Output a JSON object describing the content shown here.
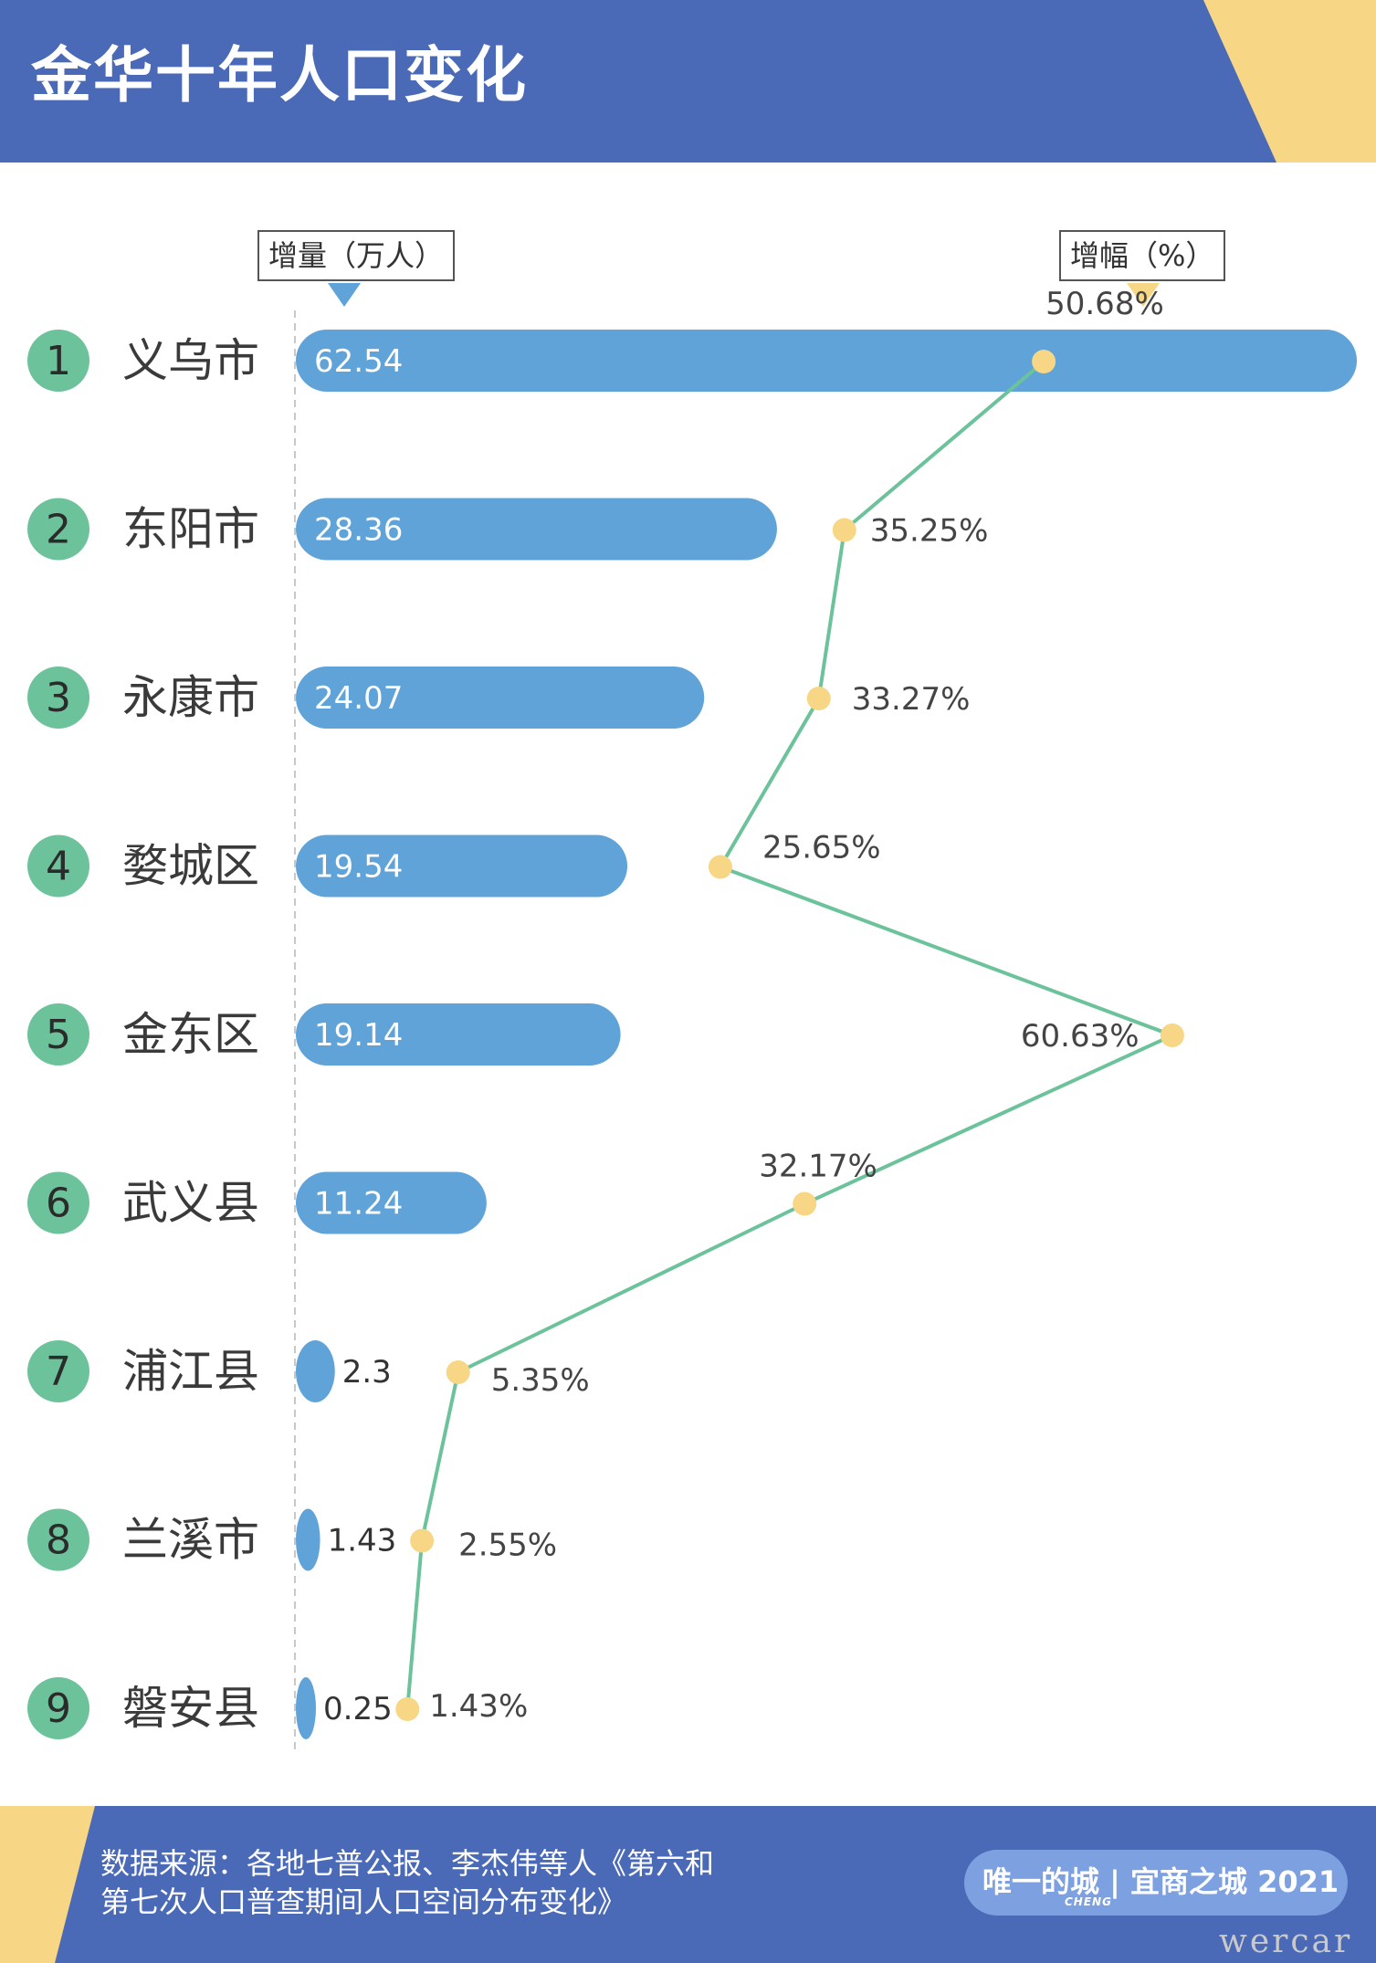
{
  "header": {
    "title": "金华十年人口变化"
  },
  "legend": {
    "increase_label": "增量（万人）",
    "growth_label": "增幅（%）"
  },
  "colors": {
    "header_bg": "#4a6ab8",
    "accent_yellow": "#f7d786",
    "bar": "#5fa3d9",
    "rank_circle": "#6cc39b",
    "line": "#6cc39b",
    "dot": "#f7d786"
  },
  "chart_data": {
    "type": "bar",
    "categories": [
      "义乌市",
      "东阳市",
      "永康市",
      "婺城区",
      "金东区",
      "武义县",
      "浦江县",
      "兰溪市",
      "磐安县"
    ],
    "ranks": [
      "1",
      "2",
      "3",
      "4",
      "5",
      "6",
      "7",
      "8",
      "9"
    ],
    "series": [
      {
        "name": "增量（万人）",
        "type": "bar",
        "values": [
          62.54,
          28.36,
          24.07,
          19.54,
          19.14,
          11.24,
          2.3,
          1.43,
          0.25
        ],
        "labels": [
          "62.54",
          "28.36",
          "24.07",
          "19.54",
          "19.14",
          "11.24",
          "2.3",
          "1.43",
          "0.25"
        ]
      },
      {
        "name": "增幅（%）",
        "type": "line",
        "values": [
          50.68,
          35.25,
          33.27,
          25.65,
          60.63,
          32.17,
          5.35,
          2.55,
          1.43
        ],
        "labels": [
          "50.68%",
          "35.25%",
          "33.27%",
          "25.65%",
          "60.63%",
          "32.17%",
          "5.35%",
          "2.55%",
          "1.43%"
        ]
      }
    ],
    "orientation": "horizontal"
  },
  "footer": {
    "source_line1": "数据来源：各地七普公报、李杰伟等人《第六和",
    "source_line2": "第七次人口普查期间人口空间分布变化》",
    "brand_main": "唯一的城 | 宜商之城 2021",
    "brand_sub": "CHENG",
    "watermark": "wercar"
  }
}
